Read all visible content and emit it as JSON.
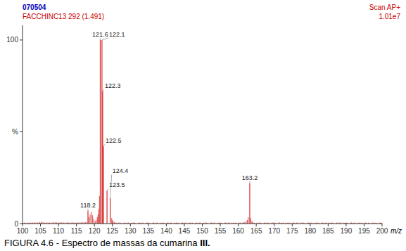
{
  "chart_data": {
    "type": "stem",
    "headers": [
      {
        "text": "070504",
        "color": "#0000BB"
      },
      {
        "text": "FACCHINC13 292 (1.491)",
        "color": "#CC0000"
      },
      {
        "text": "Scan AP+",
        "color": "#CC0000"
      },
      {
        "text": "1.01e7",
        "color": "#CC0000"
      }
    ],
    "caption": [
      "FIGURA 4.6 - Espectro de massas da cumarina ",
      "III."
    ],
    "x_label": "m/z",
    "xlim": [
      100,
      200
    ],
    "xticks": [
      100,
      105,
      110,
      115,
      120,
      125,
      130,
      135,
      140,
      145,
      150,
      155,
      160,
      165,
      170,
      175,
      180,
      185,
      190,
      195,
      200
    ],
    "ylim": [
      0,
      108
    ],
    "yticks": [
      0,
      {
        "value": 50,
        "label": "%"
      },
      100
    ],
    "grid": false,
    "series": [
      {
        "color": "#CC0000",
        "x": [
          100.2,
          100.5,
          100.8,
          101.2,
          101.5,
          101.8,
          102.2,
          102.5,
          102.8,
          103.2,
          103.5,
          103.8,
          104.2,
          104.5,
          104.8,
          105.2,
          105.5,
          105.8,
          106.2,
          106.5,
          106.8,
          107.2,
          107.5,
          107.8,
          108.2,
          108.5,
          108.8,
          109.2,
          109.5,
          109.8,
          110.2,
          110.5,
          110.8,
          111.2,
          111.5,
          111.8,
          112.2,
          112.5,
          112.8,
          113.2,
          113.5,
          113.8,
          114.2,
          114.5,
          114.8,
          115.2,
          115.5,
          115.8,
          116.2,
          116.5,
          116.8,
          117.2,
          117.5,
          117.8,
          118.5,
          118.8,
          119.2,
          119.5,
          119.8,
          120.2,
          120.5,
          120.8,
          121.0,
          121.2,
          121.4,
          124.8,
          125.0,
          125.2,
          125.5,
          125.8,
          126.2,
          126.5,
          126.8,
          127.2,
          127.5,
          128.2,
          128.5,
          128.8,
          129.2,
          129.5,
          130.2,
          130.5,
          130.8,
          131.2,
          131.5,
          132.2,
          132.5,
          132.8,
          133.2,
          133.5,
          134.2,
          134.5,
          134.8,
          135.2,
          135.5,
          136.2,
          136.5,
          136.8,
          137.2,
          137.5,
          138.2,
          138.5,
          138.8,
          139.2,
          139.5,
          140.2,
          140.5,
          140.8,
          141.2,
          141.5,
          142.2,
          142.5,
          142.8,
          143.2,
          143.5,
          144.2,
          144.5,
          144.8,
          145.2,
          145.5,
          146.2,
          146.5,
          146.8,
          147.2,
          147.5,
          148.2,
          148.5,
          148.8,
          149.2,
          149.5,
          150.2,
          150.5,
          150.8,
          151.2,
          151.5,
          152.2,
          152.5,
          152.8,
          153.2,
          153.5,
          154.2,
          154.5,
          154.8,
          155.2,
          155.5,
          156.2,
          156.5,
          156.8,
          157.2,
          157.5,
          158.2,
          158.5,
          158.8,
          159.2,
          159.5,
          160.2,
          160.5,
          160.8,
          161.2,
          161.5,
          161.8,
          162.2,
          162.5,
          162.8,
          163.5,
          163.8,
          164.0,
          164.2,
          164.5,
          165.2,
          165.5,
          165.8,
          166.2,
          166.5,
          167.2,
          167.5,
          167.8,
          168.2,
          168.5,
          169.2,
          169.5,
          169.8,
          170.2,
          170.5,
          171.2,
          171.5,
          171.8,
          172.2,
          172.5,
          173.2,
          173.5,
          173.8,
          174.2,
          174.5,
          175.2,
          175.5,
          175.8,
          176.2,
          176.5,
          177.2,
          177.5,
          177.8,
          178.2,
          178.5,
          179.2,
          179.5,
          179.8,
          180.2,
          180.5,
          181.2,
          181.5,
          181.8,
          182.2,
          182.5,
          183.2,
          183.5,
          183.8,
          184.2,
          184.5,
          185.2,
          185.5,
          185.8,
          186.2,
          186.5,
          187.2,
          187.5,
          187.8,
          188.2,
          188.5,
          189.2,
          189.5,
          189.8,
          190.2,
          190.5,
          191.2,
          191.5,
          191.8,
          192.2,
          192.5,
          193.2,
          193.5,
          193.8,
          194.2,
          194.5,
          195.2,
          195.5,
          195.8,
          196.2,
          196.5,
          197.2,
          197.5,
          197.8,
          198.2,
          198.5,
          199.2,
          199.5,
          199.8,
          200.0
        ],
        "values": [
          0.4,
          0.6,
          0.3,
          0.5,
          0.4,
          0.6,
          0.5,
          0.4,
          0.6,
          0.5,
          0.7,
          0.4,
          0.6,
          0.5,
          0.8,
          1.0,
          0.7,
          0.5,
          0.6,
          0.4,
          0.7,
          0.5,
          0.6,
          0.4,
          0.5,
          0.7,
          0.5,
          0.8,
          0.6,
          0.4,
          0.6,
          0.5,
          0.7,
          0.5,
          0.6,
          0.4,
          0.5,
          0.7,
          0.5,
          0.6,
          0.5,
          0.7,
          0.5,
          0.6,
          0.4,
          0.7,
          0.5,
          0.6,
          0.5,
          0.8,
          0.6,
          0.7,
          0.6,
          0.8,
          3.5,
          5.0,
          6.5,
          4.5,
          2.5,
          1.5,
          2.0,
          3.5,
          5.0,
          8.0,
          15.0,
          3.0,
          2.0,
          1.2,
          0.8,
          0.6,
          0.5,
          0.4,
          0.6,
          0.5,
          0.4,
          0.5,
          0.6,
          0.4,
          0.5,
          0.6,
          0.5,
          0.4,
          0.6,
          0.5,
          0.4,
          0.5,
          0.6,
          0.4,
          0.5,
          0.6,
          0.4,
          0.5,
          0.6,
          0.5,
          0.4,
          0.5,
          0.6,
          0.4,
          0.5,
          0.6,
          0.4,
          0.5,
          0.6,
          0.5,
          0.4,
          0.5,
          0.6,
          0.4,
          0.5,
          0.6,
          0.5,
          0.4,
          0.6,
          0.5,
          0.4,
          0.5,
          0.6,
          0.4,
          0.5,
          0.6,
          0.4,
          0.5,
          0.6,
          0.5,
          0.4,
          0.5,
          0.6,
          0.4,
          0.5,
          0.6,
          0.4,
          0.5,
          0.6,
          0.5,
          0.4,
          0.5,
          0.6,
          0.4,
          0.5,
          0.6,
          0.5,
          0.4,
          0.6,
          0.5,
          0.4,
          0.5,
          0.6,
          0.4,
          0.5,
          0.6,
          0.5,
          0.4,
          0.6,
          0.5,
          0.4,
          0.5,
          0.6,
          0.4,
          0.5,
          0.6,
          0.8,
          1.2,
          2.0,
          3.5,
          3.0,
          1.5,
          0.8,
          0.5,
          0.4,
          0.5,
          0.4,
          0.6,
          0.5,
          0.4,
          0.5,
          0.6,
          0.4,
          0.5,
          0.6,
          0.4,
          0.5,
          0.6,
          0.5,
          0.4,
          0.5,
          0.6,
          0.4,
          0.5,
          0.6,
          0.5,
          0.4,
          0.6,
          0.5,
          0.4,
          0.5,
          0.6,
          0.4,
          0.5,
          0.6,
          0.5,
          0.4,
          0.6,
          0.5,
          0.4,
          0.5,
          0.6,
          0.4,
          0.5,
          0.6,
          0.5,
          0.4,
          0.6,
          0.5,
          0.4,
          0.5,
          0.6,
          0.4,
          0.5,
          0.6,
          0.5,
          0.4,
          0.6,
          0.5,
          0.4,
          0.5,
          0.6,
          0.4,
          0.5,
          0.6,
          0.5,
          0.4,
          0.6,
          0.5,
          0.4,
          0.5,
          0.6,
          0.4,
          0.5,
          0.6,
          0.5,
          0.4,
          0.6,
          0.5,
          0.4,
          0.5,
          0.6,
          0.4,
          0.5,
          0.4,
          0.5,
          0.6,
          0.4,
          0.5,
          0.4,
          0.5,
          0.6,
          0.4,
          0.3
        ]
      },
      {
        "color": "#CC0000",
        "x": [
          118.2,
          121.6,
          122.1,
          122.3,
          122.5,
          123.5,
          124.4,
          163.2
        ],
        "values": [
          7.0,
          100.0,
          100.0,
          72.0,
          42.0,
          18.0,
          14.0,
          22.0
        ]
      }
    ],
    "annotations": [
      {
        "text": "118.2",
        "x": 118.2,
        "y": 7.0
      },
      {
        "text": "121.6",
        "x": 121.6,
        "y": 100.0
      },
      {
        "text": "122.1",
        "x": 122.1,
        "y": 100.0
      },
      {
        "text": "122.3",
        "x": 122.3,
        "y": 72.0
      },
      {
        "text": "122.5",
        "x": 122.5,
        "y": 42.0
      },
      {
        "text": "123.5",
        "x": 123.5,
        "y": 18.0
      },
      {
        "text": "124.4",
        "x": 124.4,
        "y": 14.0
      },
      {
        "text": "163.2",
        "x": 163.2,
        "y": 22.0
      }
    ]
  }
}
